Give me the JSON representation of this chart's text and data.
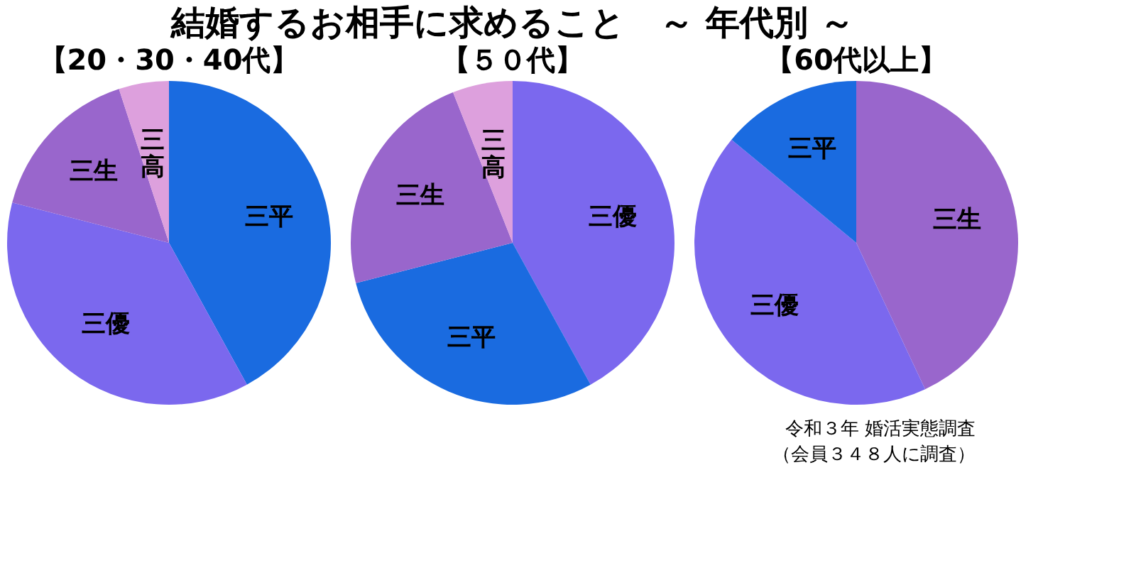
{
  "chart_data": [
    {
      "type": "pie",
      "title": "結婚するお相手に求めること　～ 年代別 ～",
      "subtitle": "【20・30・40代】",
      "categories": [
        "三平",
        "三優",
        "三生",
        "三高"
      ],
      "values": [
        42,
        37,
        16,
        5
      ],
      "colors": [
        "#1a6be0",
        "#7b68ee",
        "#9966cc",
        "#dda0dd"
      ],
      "data_labels": false,
      "legend": false
    },
    {
      "type": "pie",
      "subtitle": "【５０代】",
      "categories": [
        "三優",
        "三平",
        "三生",
        "三高"
      ],
      "values": [
        42,
        29,
        23,
        6
      ],
      "colors": [
        "#7b68ee",
        "#1a6be0",
        "#9966cc",
        "#dda0dd"
      ],
      "data_labels": false,
      "legend": false
    },
    {
      "type": "pie",
      "subtitle": "【60代以上】",
      "categories": [
        "三生",
        "三優",
        "三平"
      ],
      "values": [
        43,
        43,
        14
      ],
      "colors": [
        "#9966cc",
        "#7b68ee",
        "#1a6be0"
      ],
      "data_labels": false,
      "legend": false,
      "annotations": [
        "令和３年 婚活実態調査",
        "（会員３４８人に調査）"
      ]
    }
  ]
}
